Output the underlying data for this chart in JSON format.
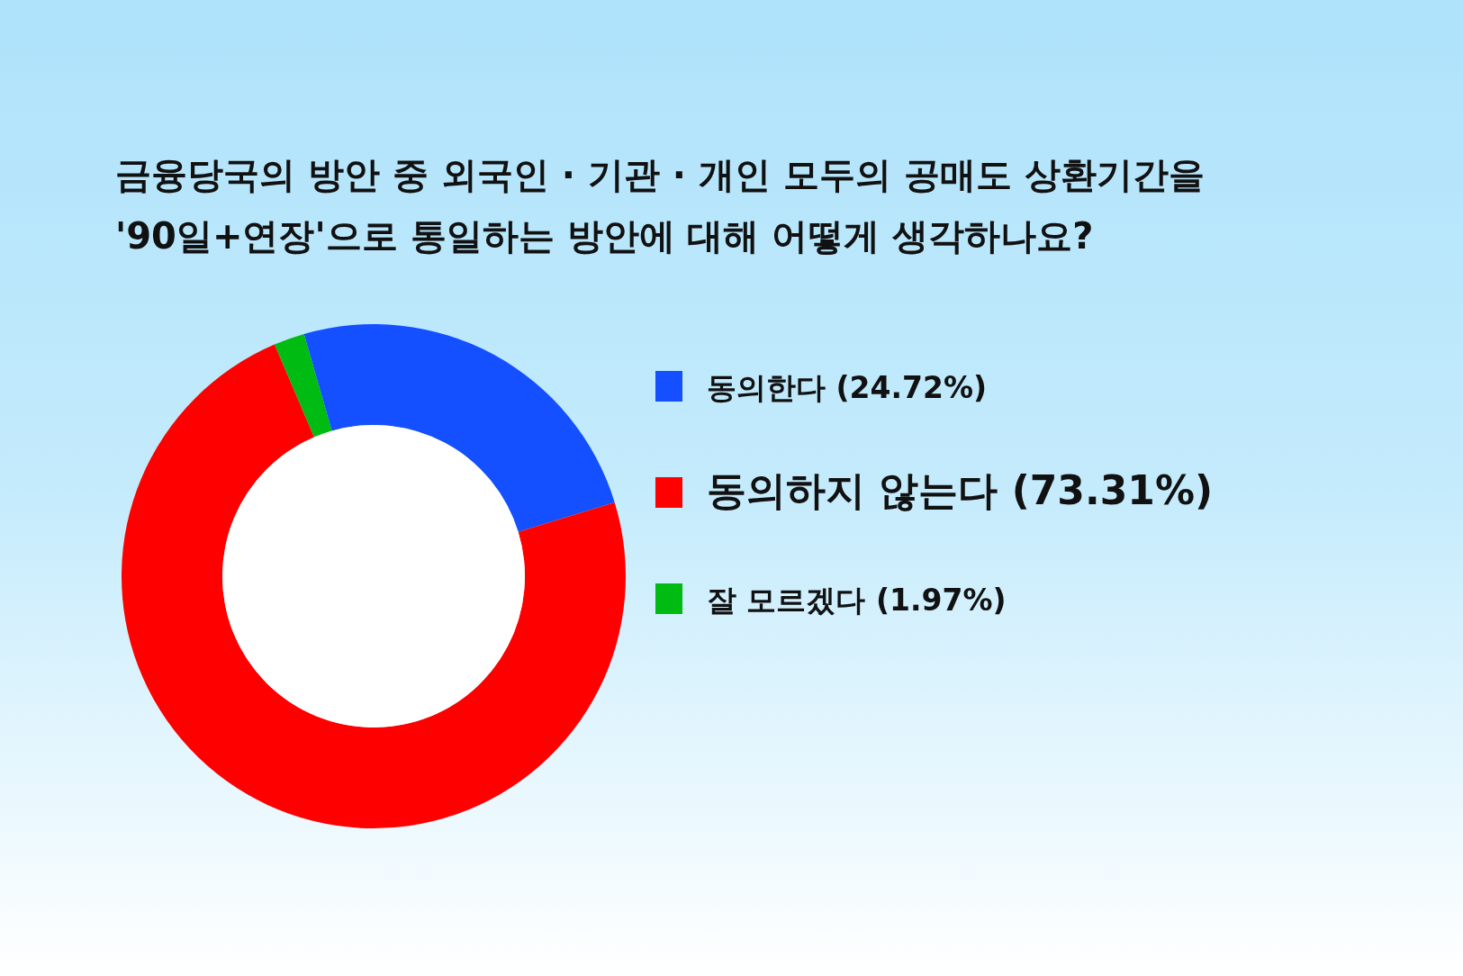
{
  "chart_data": {
    "type": "donut",
    "title": "금융당국의 방안 중 외국인 · 기관 · 개인 모두의 공매도 상환기간을\n'90일+연장'으로 통일하는 방안에 대해 어떻게 생각하나요?",
    "categories": [
      "동의한다 (24.72%)",
      "동의하지 않는다 (73.31%)",
      "잘 모르겠다 (1.97%)"
    ],
    "values": [
      24.72,
      73.31,
      1.97
    ],
    "colors": [
      "#1450ff",
      "#ff0000",
      "#00bb11"
    ],
    "legend": "right"
  }
}
